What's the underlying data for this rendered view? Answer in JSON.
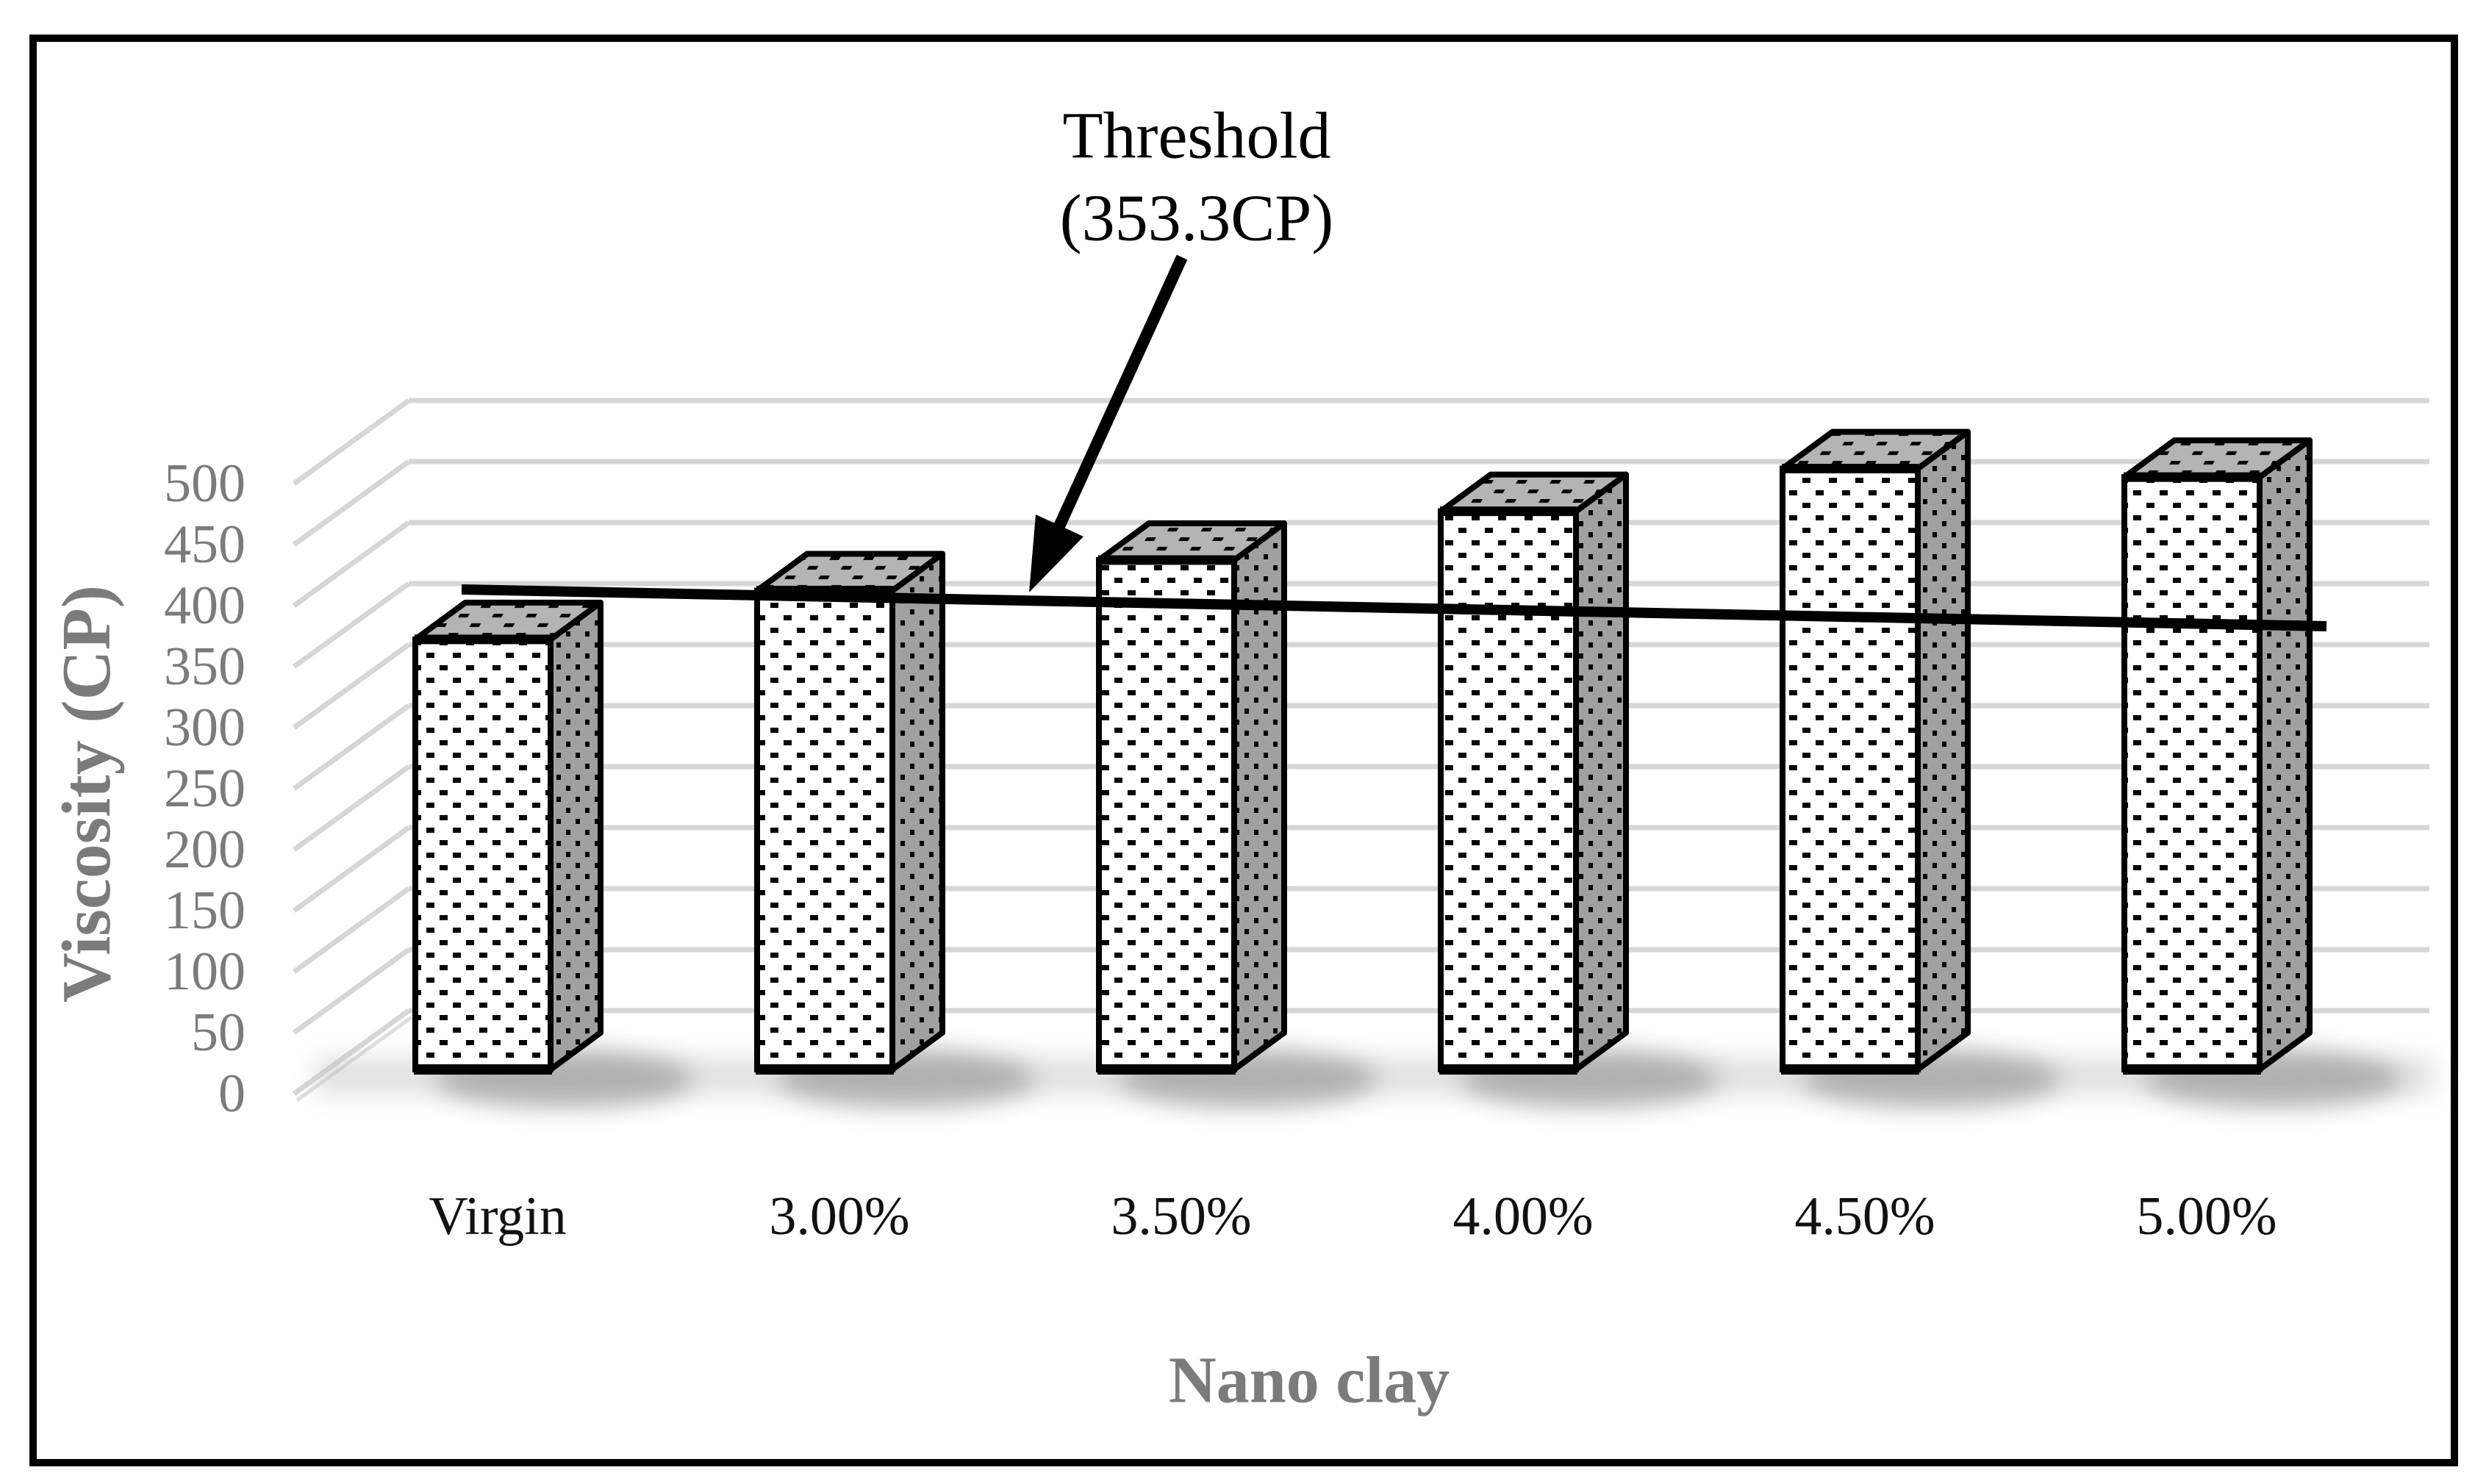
{
  "chart_data": {
    "type": "bar",
    "subtype": "3d-column-dotted-texture",
    "title": "",
    "categories": [
      "Virgin",
      "3.00%",
      "3.50%",
      "4.00%",
      "4.50%",
      "5.00%"
    ],
    "values": [
      335,
      375,
      400,
      440,
      475,
      468
    ],
    "values_note": "approximate viscosity read from gridlines (CP)",
    "xlabel": "Nano clay",
    "ylabel": "Viscosity (CP)",
    "y_ticks": [
      0,
      50,
      100,
      150,
      200,
      250,
      300,
      350,
      400,
      450,
      500
    ],
    "ylim": [
      0,
      500
    ],
    "grid": "horizontal, every 50 CP, light gray, 3D back wall",
    "legend": "none",
    "threshold": {
      "value": 353.3,
      "unit": "CP",
      "label_line1": "Threshold",
      "label_line2": "(353.3CP)"
    }
  },
  "axes": {
    "y_label": "Viscosity (CP)",
    "x_label": "Nano clay",
    "y_tick_labels": [
      "0",
      "50",
      "100",
      "150",
      "200",
      "250",
      "300",
      "350",
      "400",
      "450",
      "500"
    ]
  },
  "annotation": {
    "line1": "Threshold",
    "line2": "(353.3CP)"
  },
  "colors": {
    "background": "#ffffff",
    "border": "#000000",
    "gridline": "#d6d6d6",
    "axis_text_gray": "#7b7b7b",
    "category_text": "#111111",
    "bar_front": "#ffffff",
    "bar_side": "#a0a0a0",
    "bar_top": "#b4b4b4",
    "bar_outline": "#000000",
    "threshold_line": "#000000",
    "annotation_text": "#000000",
    "shadow": "#8f8f8f"
  }
}
